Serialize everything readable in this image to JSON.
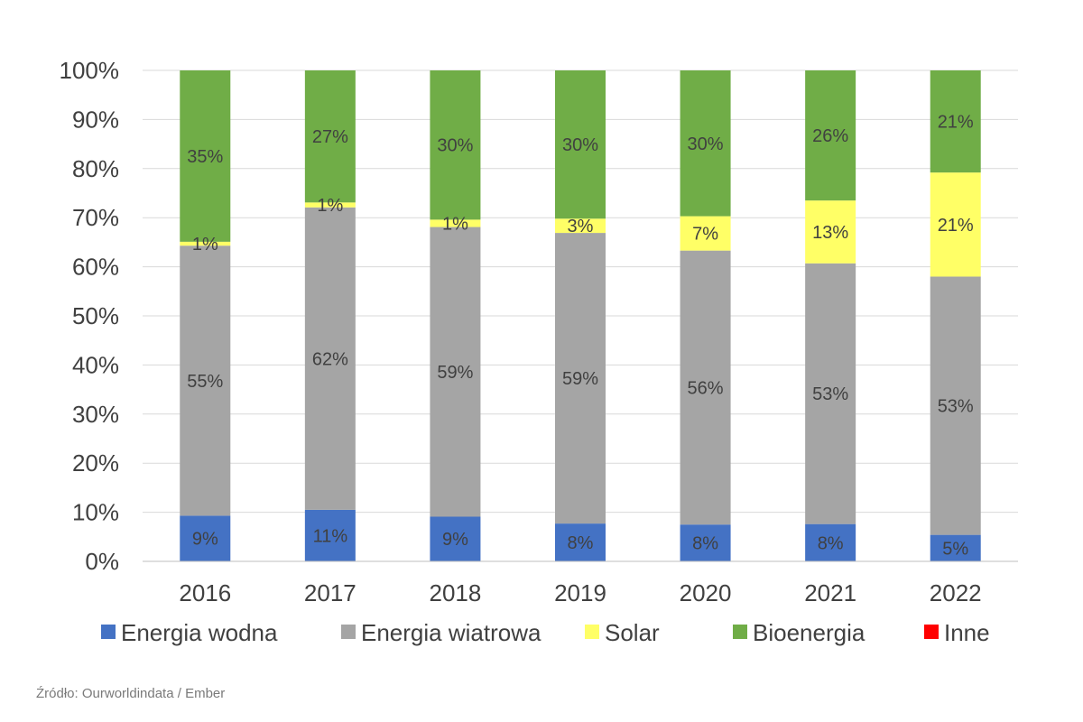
{
  "chart_data": {
    "type": "bar",
    "stacked": true,
    "categories": [
      "2016",
      "2017",
      "2018",
      "2019",
      "2020",
      "2021",
      "2022"
    ],
    "ylim": [
      0,
      100
    ],
    "y_ticks": [
      "0%",
      "10%",
      "20%",
      "30%",
      "40%",
      "50%",
      "60%",
      "70%",
      "80%",
      "90%",
      "100%"
    ],
    "grid": true,
    "legend_position": "bottom",
    "series": [
      {
        "name": "Energia wodna",
        "color": "#4472C4",
        "values": [
          9.3,
          10.5,
          9.1,
          7.7,
          7.5,
          7.6,
          5.4
        ],
        "labels": [
          "9%",
          "11%",
          "9%",
          "8%",
          "8%",
          "8%",
          "5%"
        ]
      },
      {
        "name": "Energia wiatrowa",
        "color": "#A5A5A5",
        "values": [
          55.0,
          61.6,
          59.0,
          59.2,
          55.8,
          53.1,
          52.6
        ],
        "labels": [
          "55%",
          "62%",
          "59%",
          "59%",
          "56%",
          "53%",
          "53%"
        ]
      },
      {
        "name": "Solar",
        "color": "#FFFF66",
        "values": [
          0.8,
          1.0,
          1.5,
          2.9,
          7.0,
          12.8,
          21.2
        ],
        "labels": [
          "1%",
          "1%",
          "1%",
          "3%",
          "7%",
          "13%",
          "21%"
        ]
      },
      {
        "name": "Bioenergia",
        "color": "#70AD47",
        "values": [
          34.9,
          26.9,
          30.4,
          30.2,
          29.7,
          26.5,
          20.8
        ],
        "labels": [
          "35%",
          "27%",
          "30%",
          "30%",
          "30%",
          "26%",
          "21%"
        ]
      },
      {
        "name": "Inne",
        "color": "#FF0000",
        "values": [
          0,
          0,
          0,
          0,
          0,
          0,
          0
        ],
        "labels": [
          "",
          "",
          "",
          "",
          "",
          "",
          ""
        ]
      }
    ]
  },
  "source": "Źródło: Ourworldindata / Ember"
}
